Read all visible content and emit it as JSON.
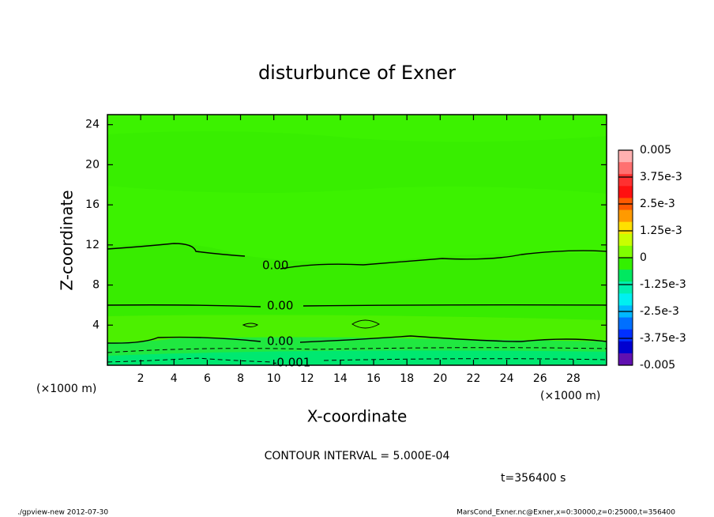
{
  "chart_data": {
    "type": "contour",
    "title": "disturbunce of Exner",
    "xlabel": "X-coordinate",
    "ylabel": "Z-coordinate",
    "xunit": "(×1000 m)",
    "yunit": "(×1000 m)",
    "xlim": [
      0,
      30
    ],
    "xticks": [
      2,
      4,
      6,
      8,
      10,
      12,
      14,
      16,
      18,
      20,
      22,
      24,
      26,
      28
    ],
    "ylim": [
      0,
      25
    ],
    "yticks": [
      4,
      8,
      12,
      16,
      20,
      24
    ],
    "contours": [
      {
        "level": 0,
        "label": "0.00"
      },
      {
        "level": 0,
        "label": "0.00"
      },
      {
        "level": 0,
        "label": "0.00"
      },
      {
        "level": -0.001,
        "label": "-0.001"
      }
    ],
    "colorbar": {
      "ticks": [
        0.005,
        {
          "value": 0.00375,
          "label": "3.75e-3"
        },
        {
          "value": 0.0025,
          "label": "2.5e-3"
        },
        {
          "value": 0.00125,
          "label": "1.25e-3"
        },
        0,
        {
          "value": -0.00125,
          "label": "-1.25e-3"
        },
        {
          "value": -0.0025,
          "label": "-2.5e-3"
        },
        {
          "value": -0.00375,
          "label": "-3.75e-3"
        },
        -0.005
      ],
      "colors": [
        "#ffb0b0",
        "#ff7070",
        "#ff3030",
        "#ff1010",
        "#ff5a00",
        "#ff9a00",
        "#ffe000",
        "#c8ff00",
        "#80ff00",
        "#33f000",
        "#00e860",
        "#00f0b0",
        "#00f0f0",
        "#00b8ff",
        "#0070ff",
        "#0030ff",
        "#0000d0",
        "#6010b0"
      ]
    },
    "interval_note": "CONTOUR INTERVAL = 5.000E-04",
    "time_note": "t=356400 s",
    "footer_left": "./gpview-new  2012-07-30",
    "footer_right": "MarsCond_Exner.nc@Exner,x=0:30000,z=0:25000,t=356400"
  }
}
